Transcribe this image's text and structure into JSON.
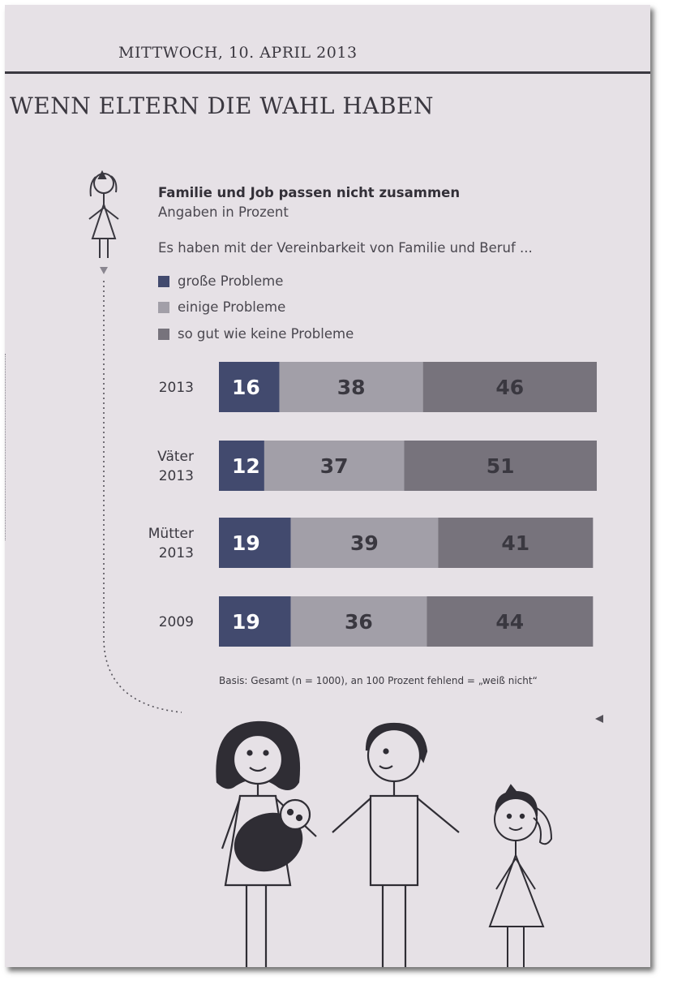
{
  "page": {
    "dateline": "MITTWOCH, 10. APRIL  2013",
    "headline": "WENN ELTERN DIE WAHL HABEN"
  },
  "chart_data": {
    "type": "bar",
    "orientation": "horizontal",
    "stacked": true,
    "title": "Familie und Job passen nicht zusammen",
    "subtitle": "Angaben in Prozent",
    "lead": "Es haben mit der Vereinbarkeit von Familie und Beruf ...",
    "categories": [
      "2013",
      "Väter 2013",
      "Mütter 2013",
      "2009"
    ],
    "category_lines": [
      [
        "2013"
      ],
      [
        "Väter",
        "2013"
      ],
      [
        "Mütter",
        "2013"
      ],
      [
        "2009"
      ]
    ],
    "series": [
      {
        "name": "große Probleme",
        "color": "#424a6e",
        "label_color": "#ffffff",
        "values": [
          16,
          12,
          19,
          19
        ]
      },
      {
        "name": "einige Probleme",
        "color": "#a29fa8",
        "label_color": "#3a3840",
        "values": [
          38,
          37,
          39,
          36
        ]
      },
      {
        "name": "so gut wie keine Probleme",
        "color": "#77737c",
        "label_color": "#3a3840",
        "values": [
          46,
          51,
          41,
          44
        ]
      }
    ],
    "xlim": [
      0,
      100
    ],
    "legend_position": "top-left",
    "grid": false,
    "note": "Basis: Gesamt (n = 1000), an 100 Prozent fehlend = „weiß nicht“"
  }
}
